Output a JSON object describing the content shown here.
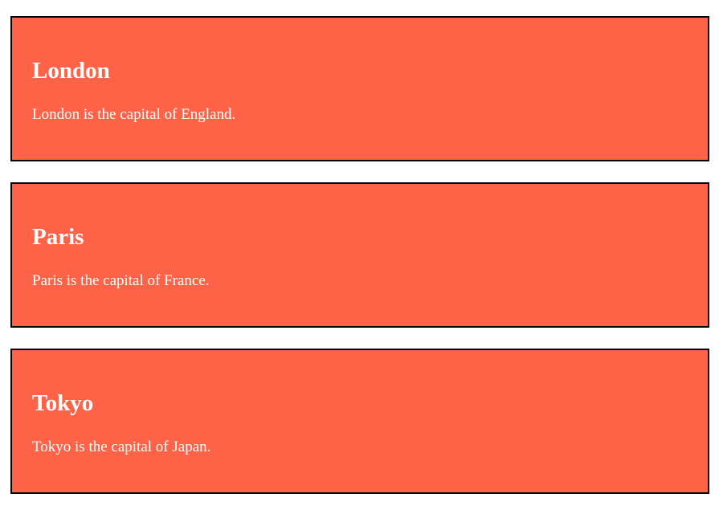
{
  "theme": {
    "card_background": "#ff6347",
    "card_border": "#000000",
    "text_color": "#ffffff"
  },
  "cities": [
    {
      "name": "London",
      "description": "London is the capital of England."
    },
    {
      "name": "Paris",
      "description": "Paris is the capital of France."
    },
    {
      "name": "Tokyo",
      "description": "Tokyo is the capital of Japan."
    }
  ]
}
